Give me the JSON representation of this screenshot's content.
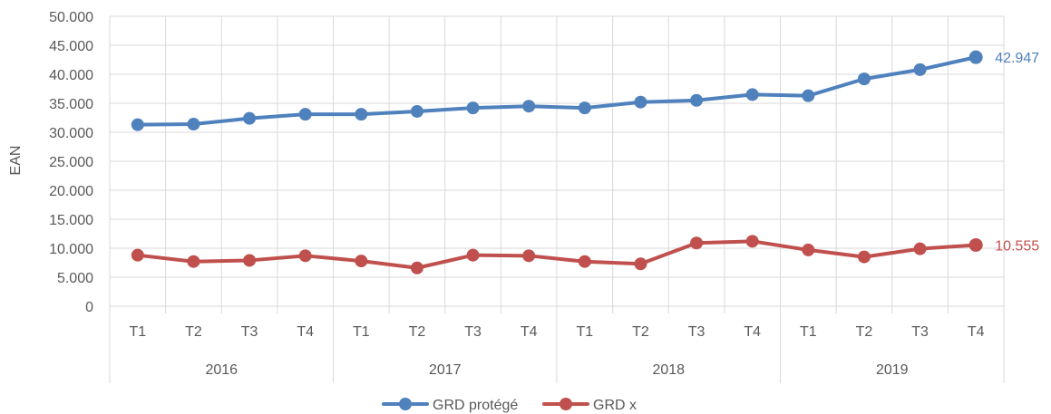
{
  "chart_data": {
    "type": "line",
    "title": "",
    "ylabel": "EAN",
    "xlabel": "",
    "ylim": [
      0,
      50000
    ],
    "yticks": [
      "0",
      "5.000",
      "10.000",
      "15.000",
      "20.000",
      "25.000",
      "30.000",
      "35.000",
      "40.000",
      "45.000",
      "50.000"
    ],
    "years": [
      "2016",
      "2017",
      "2018",
      "2019"
    ],
    "quarters": [
      "T1",
      "T2",
      "T3",
      "T4"
    ],
    "categories": [
      "T1",
      "T2",
      "T3",
      "T4",
      "T1",
      "T2",
      "T3",
      "T4",
      "T1",
      "T2",
      "T3",
      "T4",
      "T1",
      "T2",
      "T3",
      "T4"
    ],
    "grid": true,
    "legend_position": "bottom",
    "series": [
      {
        "name": "GRD protégé",
        "color": "#4f81bd",
        "values": [
          31300,
          31400,
          32400,
          33100,
          33100,
          33600,
          34200,
          34500,
          34200,
          35200,
          35500,
          36500,
          36300,
          39200,
          40800,
          42947
        ],
        "end_label": "42.947"
      },
      {
        "name": "GRD x",
        "color": "#c0504d",
        "values": [
          8800,
          7700,
          7900,
          8700,
          7800,
          6600,
          8800,
          8700,
          7700,
          7300,
          10900,
          11200,
          9700,
          8500,
          9900,
          10555
        ],
        "end_label": "10.555"
      }
    ]
  }
}
